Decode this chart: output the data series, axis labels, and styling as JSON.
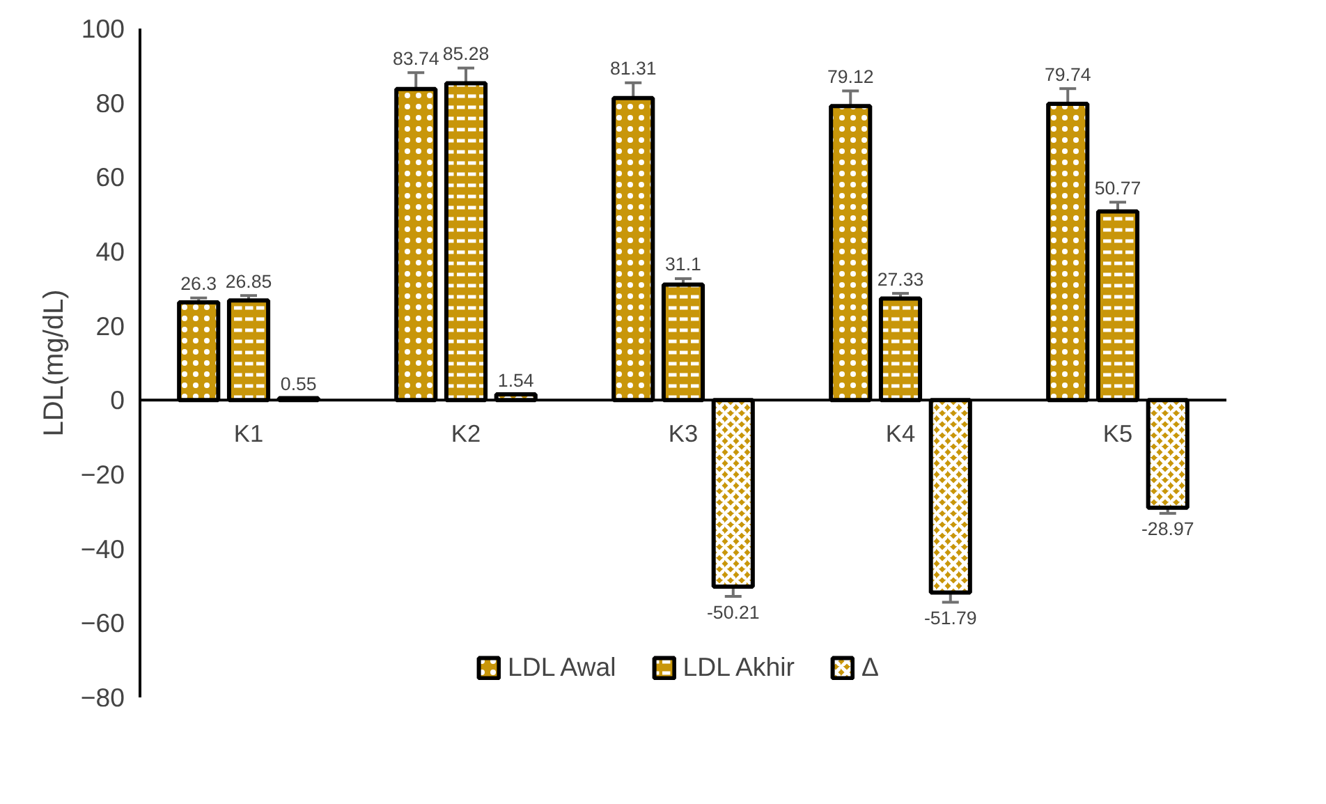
{
  "chart_data": {
    "type": "bar",
    "ylabel": "LDL(mg/dL)",
    "categories": [
      "K1",
      "K2",
      "K3",
      "K4",
      "K5"
    ],
    "series": [
      {
        "name": "LDL Awal",
        "color": "#c8960a",
        "values": [
          26.3,
          83.74,
          81.31,
          79.12,
          79.74
        ],
        "errors": [
          1.2,
          4.4,
          4.1,
          4.1,
          4.1
        ]
      },
      {
        "name": "LDL Akhir",
        "color": "#c8960a",
        "values": [
          26.85,
          85.28,
          31.1,
          27.33,
          50.77
        ],
        "errors": [
          1.3,
          4.1,
          1.6,
          1.4,
          2.5
        ]
      },
      {
        "name": "Δ",
        "color": "#c8960a",
        "values": [
          0.55,
          1.54,
          -50.21,
          -51.79,
          -28.97
        ],
        "errors": [
          null,
          null,
          2.6,
          2.6,
          1.5
        ]
      }
    ],
    "ylim": [
      -80,
      100
    ],
    "yticks": [
      -80,
      -60,
      -40,
      -20,
      0,
      20,
      40,
      60,
      80,
      100
    ],
    "data_labels": true,
    "legend": "bottom",
    "grid": false
  }
}
